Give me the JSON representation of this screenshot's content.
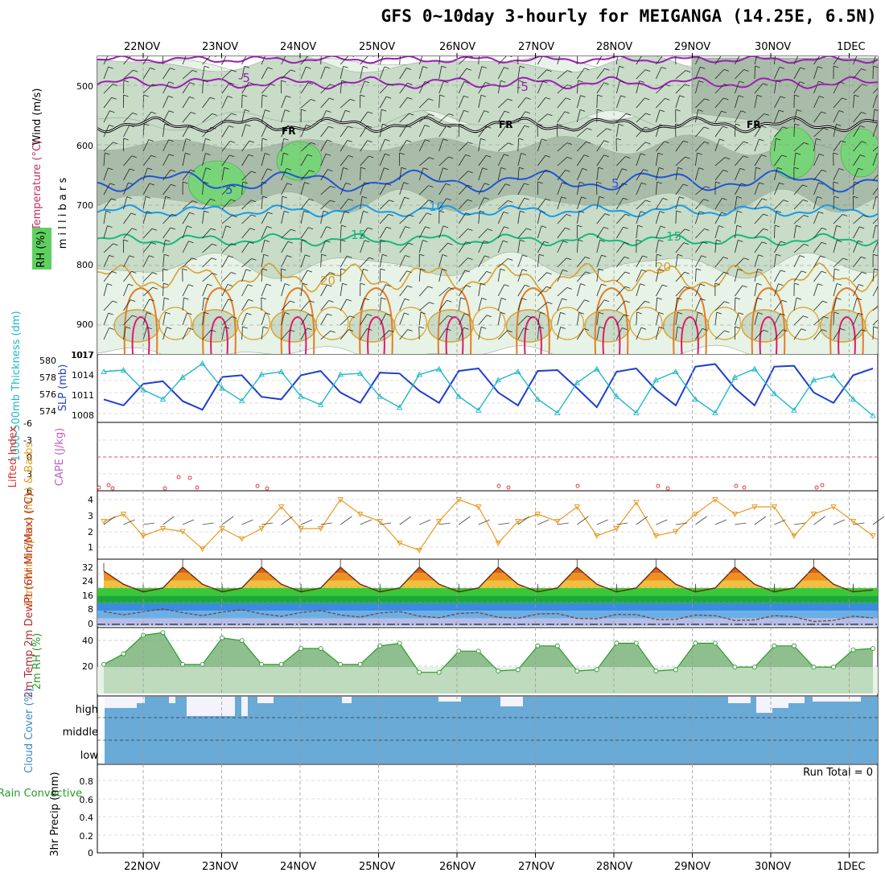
{
  "title": "GFS 0~10day 3-hourly for MEIGANGA (14.25E, 6.5N)",
  "dates": [
    "22NOV",
    "23NOV",
    "24NOV",
    "25NOV",
    "26NOV",
    "27NOV",
    "28NOV",
    "29NOV",
    "30NOV",
    "1DEC"
  ],
  "colors": {
    "rh_fill_light": "#e6f3e6",
    "rh_fill_mid": "#c8dcc8",
    "rh_fill_dark": "#a9bca9",
    "rh_fill_green": "#78d478",
    "iso_neg5": "#9b1fb3",
    "iso_0": "#000000",
    "iso_5": "#1f55d6",
    "iso_10": "#1a9ae8",
    "iso_15": "#16b87c",
    "iso_20": "#d9a030",
    "iso_25": "#e37c28",
    "iso_30": "#e0186e",
    "thickness": "#1f3fcc",
    "slp": "#20b8c8",
    "lifted": "#e03030",
    "wind10m": "#e89a20",
    "cloud": "#6aaad6",
    "rh2m_dark": "#8fbf8f",
    "rh2m_light": "#e6f3e6",
    "rh2m_line": "#2a9a2a"
  },
  "panels": {
    "upper": {
      "ylabel_wind": "Wind (m/s)",
      "ylabel_temp": "Temperature (°C)",
      "ylabel_rh": "RH (%)",
      "ylabel_mb": "m i l l i b a r s",
      "ticks": [
        "500",
        "600",
        "700",
        "800",
        "900",
        "1017"
      ],
      "contour_labels": [
        "-5",
        "-5",
        "FR",
        "FR",
        "FR",
        "5",
        "5",
        "10",
        "15",
        "15",
        "20",
        "20"
      ]
    },
    "thickness": {
      "ylabel_left": "1000-500mb Thickness (dm)",
      "ylabel_right": "SLP (mb)",
      "ticks_left": [
        "580",
        "578",
        "576",
        "574"
      ],
      "ticks_right": [
        "1017",
        "1014",
        "1011",
        "1008"
      ]
    },
    "cape": {
      "ylabel_left": "Lifted Index",
      "ylabel_right": "CAPE (J/kg)",
      "ticks": [
        "-6",
        "-3",
        "0",
        "3",
        "6"
      ]
    },
    "wind10m": {
      "ylabel": "10m Wind Speed (m/s) & Barbs",
      "ticks": [
        "4",
        "3",
        "2",
        "1"
      ]
    },
    "temp2m": {
      "ylabel": "2m Temp 2m DewPt (6hr Min/Max) (°C)",
      "ticks": [
        "32",
        "24",
        "16",
        "8",
        "0"
      ]
    },
    "rh2m": {
      "ylabel": "2m RH (%)",
      "ticks": [
        "40",
        "20"
      ]
    },
    "cloud": {
      "ylabel": "Cloud Cover (%)",
      "levels": [
        "high",
        "middle",
        "low"
      ]
    },
    "precip": {
      "ylabel_left": "Total / Rain Convective",
      "ylabel_right": "3hr Precip (mm)",
      "ticks": [
        "0.8",
        "0.6",
        "0.4",
        "0.2",
        "0"
      ],
      "run_total": "Run Total = 0"
    }
  },
  "chart_data": [
    {
      "type": "line",
      "title": "1000-500mb Thickness (dm)",
      "x": [
        "21NOV12",
        "21NOV18",
        "22NOV00",
        "22NOV06",
        "22NOV12",
        "22NOV18",
        "23NOV00",
        "23NOV06",
        "23NOV12",
        "23NOV18",
        "24NOV00",
        "24NOV06",
        "24NOV12",
        "24NOV18",
        "25NOV00",
        "25NOV06",
        "25NOV12",
        "25NOV18",
        "26NOV00",
        "26NOV06",
        "26NOV12",
        "26NOV18",
        "27NOV00",
        "27NOV06",
        "27NOV12",
        "27NOV18",
        "28NOV00",
        "28NOV06",
        "28NOV12",
        "28NOV18",
        "29NOV00",
        "29NOV06",
        "29NOV12",
        "29NOV18",
        "30NOV00",
        "30NOV06",
        "30NOV12",
        "30NOV18",
        "1DEC00",
        "1DEC06"
      ],
      "values": [
        575.2,
        574.5,
        577.0,
        577.3,
        575.0,
        574.0,
        577.8,
        578.0,
        575.5,
        575.2,
        578.0,
        578.5,
        576.0,
        574.8,
        578.3,
        578.2,
        576.2,
        574.8,
        578.5,
        578.8,
        576.0,
        574.5,
        578.5,
        578.6,
        576.5,
        574.3,
        578.4,
        578.8,
        576.3,
        574.5,
        579.0,
        579.3,
        576.5,
        574.5,
        579.0,
        579.1,
        576.0,
        574.8,
        578.0,
        578.8
      ],
      "ylim": [
        573,
        580
      ]
    },
    {
      "type": "line",
      "title": "SLP (mb)",
      "x": [
        "21NOV12",
        "21NOV18",
        "22NOV00",
        "22NOV06",
        "22NOV12",
        "22NOV18",
        "23NOV00",
        "23NOV06",
        "23NOV12",
        "23NOV18",
        "24NOV00",
        "24NOV06",
        "24NOV12",
        "24NOV18",
        "25NOV00",
        "25NOV06",
        "25NOV12",
        "25NOV18",
        "26NOV00",
        "26NOV06",
        "26NOV12",
        "26NOV18",
        "27NOV00",
        "27NOV06",
        "27NOV12",
        "27NOV18",
        "28NOV00",
        "28NOV06",
        "28NOV12",
        "28NOV18",
        "29NOV00",
        "29NOV06",
        "29NOV12",
        "29NOV18",
        "30NOV00",
        "30NOV06",
        "30NOV12",
        "30NOV18",
        "1DEC00",
        "1DEC06"
      ],
      "values": [
        1015.5,
        1015.8,
        1012.2,
        1010.5,
        1014.5,
        1017.0,
        1012.5,
        1010.2,
        1015.0,
        1015.5,
        1011.0,
        1009.5,
        1015.0,
        1015.2,
        1011.0,
        1009.0,
        1015.0,
        1016.0,
        1011.0,
        1008.5,
        1014.0,
        1015.5,
        1010.5,
        1008.0,
        1013.5,
        1016.0,
        1011.0,
        1008.0,
        1014.0,
        1015.5,
        1010.5,
        1008.0,
        1014.5,
        1016.0,
        1011.5,
        1008.5,
        1014.0,
        1014.8,
        1010.5,
        1007.5
      ],
      "ylim": [
        1007,
        1018
      ]
    },
    {
      "type": "line",
      "title": "10m Wind Speed (m/s)",
      "x": [
        "21NOV12",
        "21NOV18",
        "22NOV00",
        "22NOV06",
        "22NOV12",
        "22NOV18",
        "23NOV00",
        "23NOV06",
        "23NOV12",
        "23NOV18",
        "24NOV00",
        "24NOV06",
        "24NOV12",
        "24NOV18",
        "25NOV00",
        "25NOV06",
        "25NOV12",
        "25NOV18",
        "26NOV00",
        "26NOV06",
        "26NOV12",
        "26NOV18",
        "27NOV00",
        "27NOV06",
        "27NOV12",
        "27NOV18",
        "28NOV00",
        "28NOV06",
        "28NOV12",
        "28NOV18",
        "29NOV00",
        "29NOV06",
        "29NOV12",
        "29NOV18",
        "30NOV00",
        "30NOV06",
        "30NOV12",
        "30NOV18",
        "1DEC00",
        "1DEC06"
      ],
      "values": [
        2.5,
        3.0,
        1.5,
        2.0,
        1.8,
        0.6,
        2.0,
        1.3,
        2.0,
        3.5,
        2.0,
        2.0,
        4.0,
        3.0,
        2.5,
        1.0,
        0.5,
        2.5,
        4.0,
        3.5,
        1.0,
        2.5,
        3.0,
        2.5,
        3.5,
        1.5,
        2.0,
        3.8,
        1.5,
        1.8,
        3.0,
        4.0,
        3.0,
        3.5,
        3.5,
        1.5,
        3.0,
        3.5,
        2.5,
        1.5
      ],
      "ylim": [
        0,
        4.5
      ]
    },
    {
      "type": "area",
      "title": "2m Temp (°C)",
      "x": [
        "21NOV12",
        "21NOV18",
        "22NOV00",
        "22NOV06",
        "22NOV12",
        "22NOV18",
        "23NOV00",
        "23NOV06",
        "23NOV12",
        "23NOV18",
        "24NOV00",
        "24NOV06",
        "24NOV12",
        "24NOV18",
        "25NOV00",
        "25NOV06",
        "25NOV12",
        "25NOV18",
        "26NOV00",
        "26NOV06",
        "26NOV12",
        "26NOV18",
        "27NOV00",
        "27NOV06",
        "27NOV12",
        "27NOV18",
        "28NOV00",
        "28NOV06",
        "28NOV12",
        "28NOV18",
        "29NOV00",
        "29NOV06",
        "29NOV12",
        "29NOV18",
        "30NOV00",
        "30NOV06",
        "30NOV12",
        "30NOV18",
        "1DEC00",
        "1DEC06"
      ],
      "values": [
        29,
        22,
        18,
        20,
        31,
        22,
        18,
        20,
        31,
        22,
        18,
        20,
        31,
        22,
        18,
        20,
        31,
        22,
        18,
        20,
        31,
        22,
        18,
        20,
        31,
        22,
        18,
        20,
        31,
        22,
        18,
        20,
        31,
        22,
        18,
        20,
        31,
        22,
        18,
        19
      ],
      "ylim": [
        0,
        34
      ]
    },
    {
      "type": "area",
      "title": "2m RH (%)",
      "x": [
        "21NOV12",
        "21NOV18",
        "22NOV00",
        "22NOV06",
        "22NOV12",
        "22NOV18",
        "23NOV00",
        "23NOV06",
        "23NOV12",
        "23NOV18",
        "24NOV00",
        "24NOV06",
        "24NOV12",
        "24NOV18",
        "25NOV00",
        "25NOV06",
        "25NOV12",
        "25NOV18",
        "26NOV00",
        "26NOV06",
        "26NOV12",
        "26NOV18",
        "27NOV00",
        "27NOV06",
        "27NOV12",
        "27NOV18",
        "28NOV00",
        "28NOV06",
        "28NOV12",
        "28NOV18",
        "29NOV00",
        "29NOV06",
        "29NOV12",
        "29NOV18",
        "30NOV00",
        "30NOV06",
        "30NOV12",
        "30NOV18",
        "1DEC00",
        "1DEC06"
      ],
      "values": [
        22,
        30,
        44,
        46,
        22,
        22,
        42,
        40,
        22,
        22,
        34,
        34,
        22,
        22,
        36,
        38,
        16,
        16,
        32,
        32,
        17,
        18,
        36,
        36,
        17,
        18,
        38,
        38,
        17,
        18,
        38,
        38,
        20,
        20,
        36,
        36,
        20,
        20,
        33,
        34
      ],
      "ylim": [
        0,
        48
      ]
    }
  ]
}
